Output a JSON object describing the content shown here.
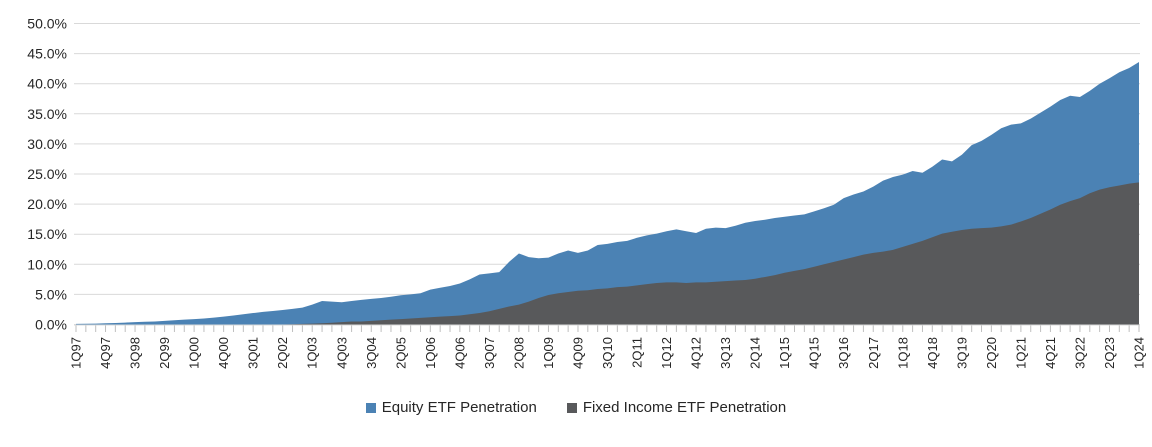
{
  "page": {
    "background": "#FFFFFF"
  },
  "chart_data": {
    "type": "area",
    "overlap": true,
    "title": "",
    "xlabel": "",
    "ylabel": "",
    "ylim": [
      0,
      50
    ],
    "ytick_step": 5,
    "ytick_labels": [
      "0.0%",
      "5.0%",
      "10.0%",
      "15.0%",
      "20.0%",
      "25.0%",
      "30.0%",
      "35.0%",
      "40.0%",
      "45.0%",
      "50.0%"
    ],
    "xtick_label_every": 3,
    "grid": "horizontal",
    "gridline_color": "#D9D9D9",
    "tick_color": "#BFBFBF",
    "axis_text_color": "#262626",
    "legend_position": "bottom-center",
    "categories": [
      "1Q97",
      "2Q97",
      "3Q97",
      "4Q97",
      "1Q98",
      "2Q98",
      "3Q98",
      "4Q98",
      "1Q99",
      "2Q99",
      "3Q99",
      "4Q99",
      "1Q00",
      "2Q00",
      "3Q00",
      "4Q00",
      "1Q01",
      "2Q01",
      "3Q01",
      "4Q01",
      "1Q02",
      "2Q02",
      "3Q02",
      "4Q02",
      "1Q03",
      "2Q03",
      "3Q03",
      "4Q03",
      "1Q04",
      "2Q04",
      "3Q04",
      "4Q04",
      "1Q05",
      "2Q05",
      "3Q05",
      "4Q05",
      "1Q06",
      "2Q06",
      "3Q06",
      "4Q06",
      "1Q07",
      "2Q07",
      "3Q07",
      "4Q07",
      "1Q08",
      "2Q08",
      "3Q08",
      "4Q08",
      "1Q09",
      "2Q09",
      "3Q09",
      "4Q09",
      "1Q10",
      "2Q10",
      "3Q10",
      "4Q10",
      "1Q11",
      "2Q11",
      "3Q11",
      "4Q11",
      "1Q12",
      "2Q12",
      "3Q12",
      "4Q12",
      "1Q13",
      "2Q13",
      "3Q13",
      "4Q13",
      "1Q14",
      "2Q14",
      "3Q14",
      "4Q14",
      "1Q15",
      "2Q15",
      "3Q15",
      "4Q15",
      "1Q16",
      "2Q16",
      "3Q16",
      "4Q16",
      "1Q17",
      "2Q17",
      "3Q17",
      "4Q17",
      "1Q18",
      "2Q18",
      "3Q18",
      "4Q18",
      "1Q19",
      "2Q19",
      "3Q19",
      "4Q19",
      "1Q20",
      "2Q20",
      "3Q20",
      "4Q20",
      "1Q21",
      "2Q21",
      "3Q21",
      "4Q21",
      "1Q22",
      "2Q22",
      "3Q22",
      "4Q22",
      "1Q23",
      "2Q23",
      "3Q23",
      "4Q23",
      "1Q24"
    ],
    "series": [
      {
        "name": "Equity ETF Penetration",
        "color": "#4B82B4",
        "values": [
          0.1,
          0.12,
          0.15,
          0.2,
          0.25,
          0.32,
          0.4,
          0.45,
          0.5,
          0.6,
          0.7,
          0.8,
          0.9,
          1.0,
          1.15,
          1.3,
          1.5,
          1.7,
          1.9,
          2.1,
          2.25,
          2.4,
          2.6,
          2.8,
          3.3,
          3.9,
          3.8,
          3.7,
          3.9,
          4.1,
          4.25,
          4.4,
          4.6,
          4.85,
          5.0,
          5.2,
          5.8,
          6.1,
          6.4,
          6.8,
          7.5,
          8.3,
          8.5,
          8.7,
          10.4,
          11.8,
          11.2,
          11.0,
          11.1,
          11.8,
          12.3,
          11.9,
          12.3,
          13.2,
          13.4,
          13.7,
          13.9,
          14.4,
          14.8,
          15.1,
          15.5,
          15.8,
          15.5,
          15.2,
          15.9,
          16.1,
          16.0,
          16.4,
          16.9,
          17.2,
          17.4,
          17.7,
          17.9,
          18.1,
          18.3,
          18.8,
          19.3,
          19.9,
          21.0,
          21.6,
          22.1,
          22.9,
          23.9,
          24.5,
          24.9,
          25.5,
          25.2,
          26.2,
          27.4,
          27.1,
          28.2,
          29.8,
          30.5,
          31.5,
          32.6,
          33.2,
          33.4,
          34.2,
          35.2,
          36.2,
          37.3,
          38.0,
          37.8,
          38.8,
          40.0,
          40.9,
          41.9,
          42.6,
          43.6
        ]
      },
      {
        "name": "Fixed Income ETF Penetration",
        "color": "#58595B",
        "values": [
          0,
          0,
          0,
          0,
          0,
          0,
          0,
          0,
          0,
          0,
          0,
          0,
          0,
          0,
          0,
          0,
          0,
          0,
          0,
          0,
          0,
          0,
          0.05,
          0.1,
          0.15,
          0.2,
          0.3,
          0.4,
          0.5,
          0.5,
          0.6,
          0.7,
          0.8,
          0.9,
          1.0,
          1.1,
          1.2,
          1.3,
          1.4,
          1.5,
          1.7,
          1.9,
          2.2,
          2.6,
          3.0,
          3.3,
          3.8,
          4.4,
          4.9,
          5.2,
          5.4,
          5.6,
          5.7,
          5.9,
          6.0,
          6.2,
          6.3,
          6.5,
          6.7,
          6.9,
          7.0,
          7.0,
          6.9,
          7.0,
          7.0,
          7.1,
          7.2,
          7.3,
          7.4,
          7.6,
          7.9,
          8.2,
          8.6,
          8.9,
          9.2,
          9.6,
          10.0,
          10.4,
          10.8,
          11.2,
          11.6,
          11.9,
          12.1,
          12.4,
          12.9,
          13.4,
          13.9,
          14.5,
          15.1,
          15.4,
          15.7,
          15.9,
          16.0,
          16.1,
          16.3,
          16.6,
          17.1,
          17.7,
          18.4,
          19.1,
          19.9,
          20.5,
          21.0,
          21.8,
          22.4,
          22.8,
          23.1,
          23.4,
          23.6
        ]
      }
    ]
  }
}
